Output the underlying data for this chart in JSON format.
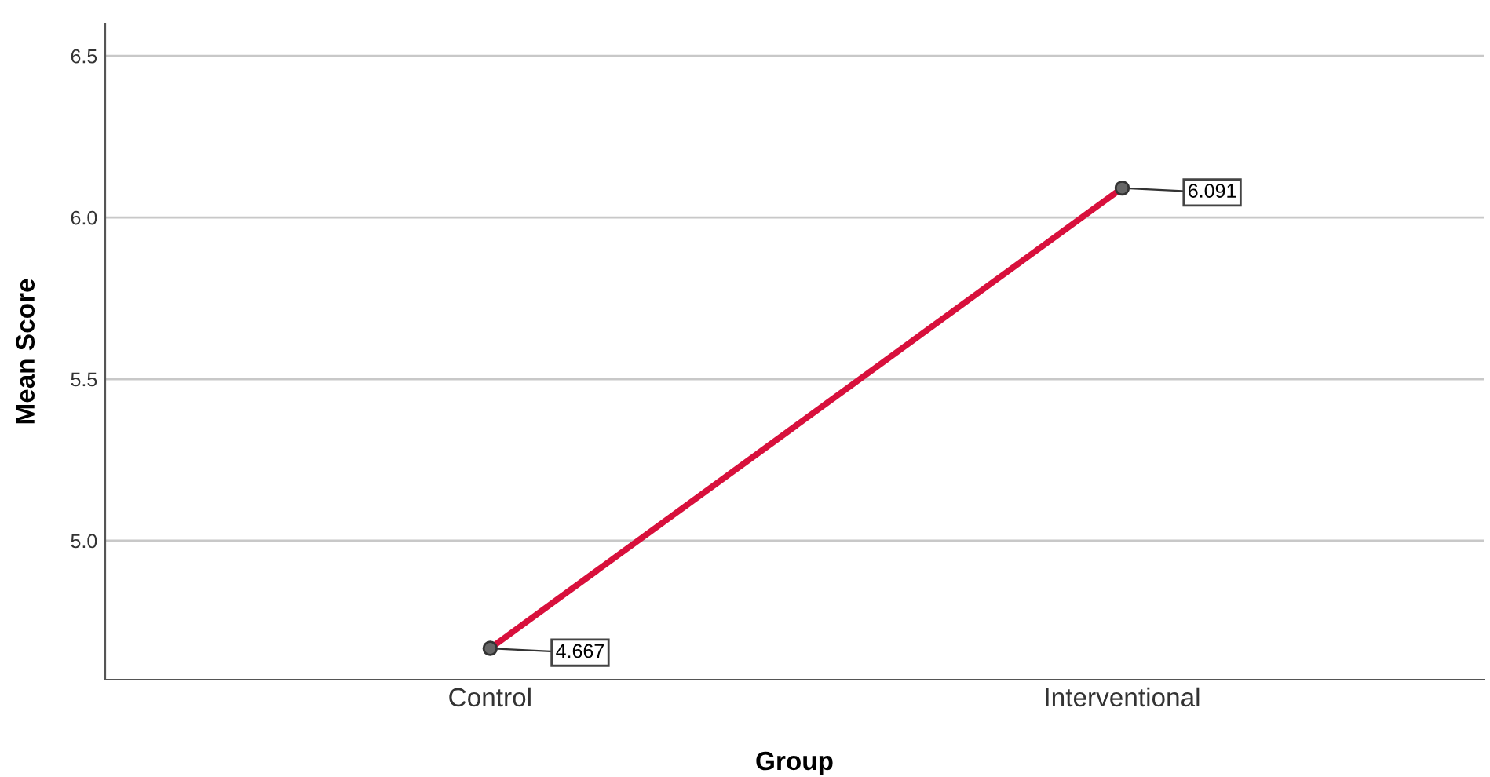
{
  "chart_data": {
    "type": "line",
    "xlabel": "Group",
    "ylabel": "Mean Score",
    "categories": [
      "Control",
      "Interventional"
    ],
    "series": [
      {
        "color": "#d8103c",
        "values": [
          4.667,
          6.091
        ]
      }
    ],
    "ylim": [
      4.57,
      6.6
    ],
    "yticks": [
      {
        "value": 5,
        "label": "5.0"
      },
      5.5,
      {
        "value": 6,
        "label": "6.0"
      },
      6.5
    ],
    "grid": "y",
    "marker": "circle",
    "line_style": "solid",
    "data_labels": true
  }
}
